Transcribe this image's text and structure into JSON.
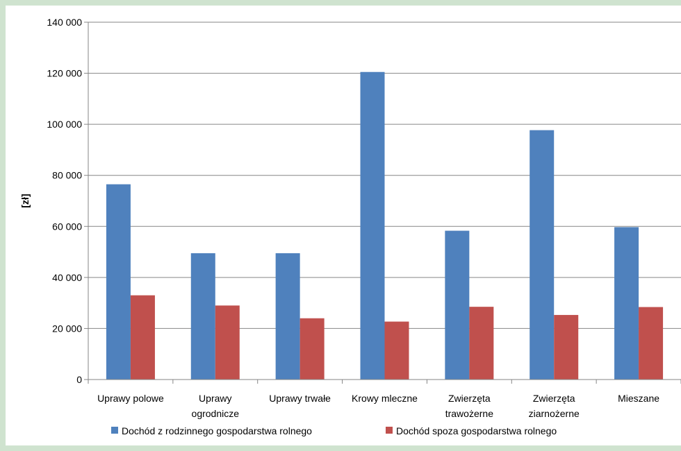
{
  "chart_data": {
    "type": "bar",
    "categories": [
      [
        "Uprawy polowe"
      ],
      [
        "Uprawy",
        "ogrodnicze"
      ],
      [
        "Uprawy trwałe"
      ],
      [
        "Krowy mleczne"
      ],
      [
        "Zwierzęta",
        "trawożerne"
      ],
      [
        "Zwierzęta",
        "ziarnożerne"
      ],
      [
        "Mieszane"
      ]
    ],
    "series": [
      {
        "name": "Dochód z rodzinnego gospodarstwa rolnego",
        "color": "#4f81bd",
        "values": [
          76500,
          49500,
          49500,
          120500,
          58300,
          97700,
          59700
        ]
      },
      {
        "name": "Dochód spoza gospodarstwa rolnego",
        "color": "#c0504d",
        "values": [
          33000,
          29000,
          24000,
          22700,
          28500,
          25300,
          28400
        ]
      }
    ],
    "ylabel": "[zł]",
    "ylim": [
      0,
      140000
    ],
    "yticks": [
      0,
      20000,
      40000,
      60000,
      80000,
      100000,
      120000,
      140000
    ],
    "ytick_labels": [
      "0",
      "20 000",
      "40 000",
      "60 000",
      "80 000",
      "100 000",
      "120 000",
      "140 000"
    ],
    "grid": true,
    "legend_position": "bottom"
  }
}
